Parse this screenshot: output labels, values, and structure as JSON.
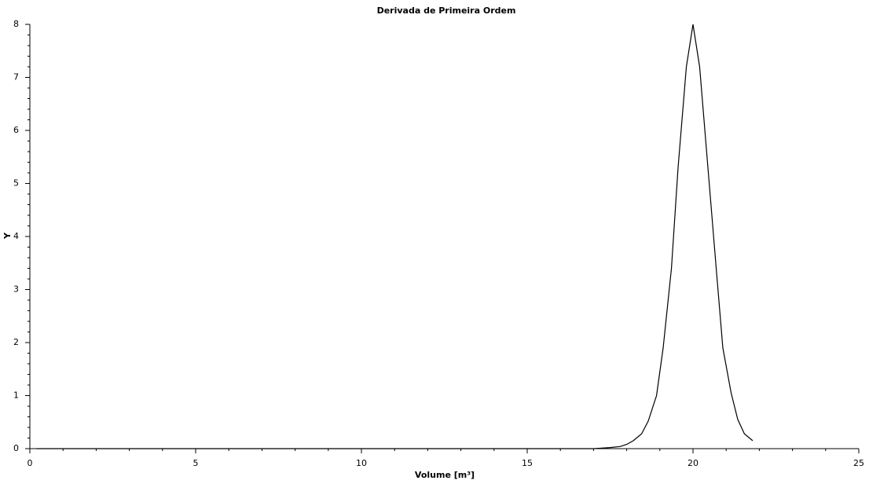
{
  "chart_data": {
    "type": "line",
    "title": "Derivada de Primeira Ordem",
    "x_label": "Volume [m³]",
    "y_label": "Y",
    "x": [
      0.2,
      17.0,
      17.5,
      17.8,
      18.0,
      18.2,
      18.45,
      18.65,
      18.9,
      19.1,
      19.35,
      19.55,
      19.8,
      20.0,
      20.2,
      20.45,
      20.7,
      20.9,
      21.15,
      21.35,
      21.55,
      21.8
    ],
    "series": [
      {
        "color": "#000000",
        "values": [
          0,
          0,
          0.02,
          0.04,
          0.08,
          0.15,
          0.28,
          0.52,
          1.0,
          1.9,
          3.4,
          5.3,
          7.2,
          8.0,
          7.2,
          5.3,
          3.4,
          1.9,
          1.05,
          0.55,
          0.28,
          0.15
        ]
      }
    ],
    "xlim": [
      0,
      25
    ],
    "xticks": [
      0,
      5,
      10,
      15,
      20,
      25
    ],
    "ylim": [
      0,
      8
    ],
    "yticks": [
      0,
      1,
      2,
      3,
      4,
      5,
      6,
      7,
      8
    ]
  }
}
